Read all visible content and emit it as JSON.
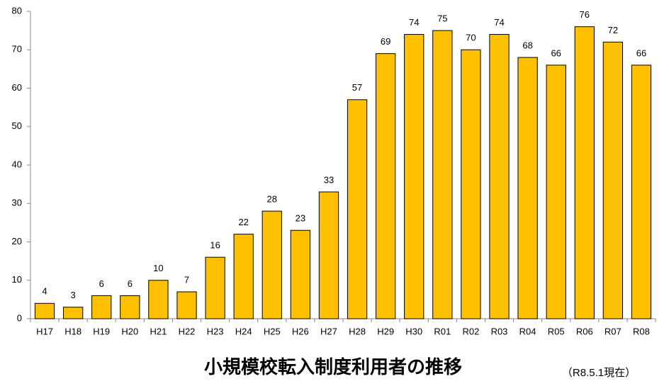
{
  "chart_data": {
    "type": "bar",
    "title": "小規模校転入制度利用者の推移",
    "note": "（R8.5.1現在）",
    "categories": [
      "H17",
      "H18",
      "H19",
      "H20",
      "H21",
      "H22",
      "H23",
      "H24",
      "H25",
      "H26",
      "H27",
      "H28",
      "H29",
      "H30",
      "R01",
      "R02",
      "R03",
      "R04",
      "R05",
      "R06",
      "R07",
      "R08"
    ],
    "values": [
      4,
      3,
      6,
      6,
      10,
      7,
      16,
      22,
      28,
      23,
      33,
      57,
      69,
      74,
      75,
      70,
      74,
      68,
      66,
      76,
      72,
      66
    ],
    "color": "#ffc000",
    "ylim": [
      0,
      80
    ],
    "yticks": [
      0,
      10,
      20,
      30,
      40,
      50,
      60,
      70,
      80
    ],
    "grid": false,
    "data_labels": true
  }
}
